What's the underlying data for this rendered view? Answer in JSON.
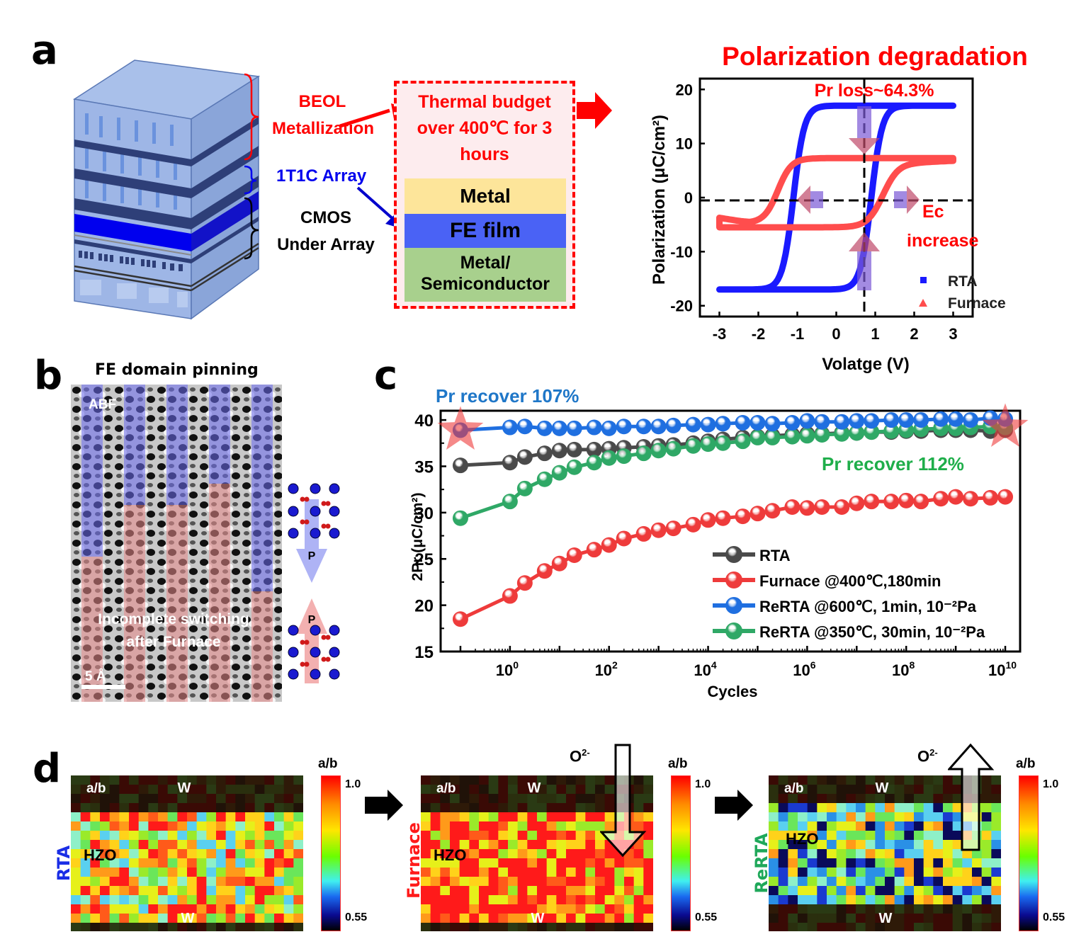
{
  "panels": {
    "a": {
      "label": "a",
      "stack_labels": {
        "beol": [
          "BEOL",
          "Metallization"
        ],
        "array": "1T1C Array",
        "cmos": [
          "CMOS",
          "Under Array"
        ]
      },
      "thermal_box": {
        "text": [
          "Thermal budget",
          "over 400℃ for 3",
          "hours"
        ],
        "layers": [
          "Metal",
          "FE film",
          "Metal/",
          "Semiconductor"
        ]
      },
      "colors": {
        "accent_red": "#ff0000",
        "array_blue": "#0000ee",
        "metal_yellow": "#fde59a",
        "fe_blue": "#4a62f5",
        "semi_green": "#a8d08d"
      }
    },
    "b": {
      "label": "b",
      "title": "FE domain pinning",
      "image_label": "ABF",
      "overlay_text": [
        "Incomplete switching",
        "after  Furnace"
      ],
      "scale_bar": "5 Å",
      "polarization_label": "P"
    },
    "c": {
      "label": "c"
    },
    "d": {
      "label": "d",
      "maps": [
        {
          "side_label": "RTA",
          "side_color": "#1a2ee6",
          "top_label": "a/b",
          "top_metal": "W",
          "bottom_metal": "W",
          "film": "HZO",
          "arrow": null
        },
        {
          "side_label": "Furnace",
          "side_color": "#ff1a1a",
          "top_label": "a/b",
          "top_metal": "W",
          "bottom_metal": "W",
          "film": "HZO",
          "arrow": "down",
          "ion": "O",
          "ion_charge": "2-"
        },
        {
          "side_label": "ReRTA",
          "side_color": "#1fa85a",
          "top_label": "a/b",
          "top_metal": "W",
          "bottom_metal": "W",
          "film": "HZO",
          "arrow": "up",
          "ion": "O",
          "ion_charge": "2-"
        }
      ],
      "colorbar": {
        "title": "a/b",
        "max_label": "1.0",
        "min_label": "0.55"
      }
    }
  },
  "chart_data": [
    {
      "id": "pe-loop",
      "type": "line",
      "title": "Polarization degradation",
      "xlabel": "Volatge (V)",
      "ylabel": "Polarization (μC/cm²)",
      "xlim": [
        -3.5,
        3.5
      ],
      "ylim": [
        -22,
        22
      ],
      "xticks": [
        "-3",
        "-2",
        "-1",
        "0",
        "1",
        "2",
        "3"
      ],
      "yticks": [
        "20",
        "10",
        "0",
        "-10",
        "-20"
      ],
      "legend": [
        {
          "name": "RTA",
          "marker": "square",
          "color": "#1a1aff"
        },
        {
          "name": "Furnace",
          "marker": "triangle",
          "color": "#ff4d4d"
        }
      ],
      "legend_position": "bottom-right",
      "annotations": [
        "Pr loss~64.3%",
        "Ec",
        "increase"
      ],
      "series": [
        {
          "name": "RTA",
          "Ps": 17,
          "Pr": 16.5,
          "Ec_neg": -1.1,
          "Ec_pos": 0.9
        },
        {
          "name": "Furnace",
          "Ps_pos": 7,
          "Ps_neg": -5,
          "Pr_pos": 6.5,
          "Pr_neg": -5.5,
          "Ec_neg": -1.5,
          "Ec_pos": 1.2
        }
      ]
    },
    {
      "id": "endurance",
      "type": "line",
      "xlabel": "Cycles",
      "ylabel": "2Pr (μC/cm²)",
      "xscale": "log",
      "xlim_log10": [
        -1.4,
        10.3
      ],
      "ylim": [
        15,
        41
      ],
      "xticks": [
        {
          "exp": "0"
        },
        {
          "exp": "2"
        },
        {
          "exp": "4"
        },
        {
          "exp": "6"
        },
        {
          "exp": "8"
        },
        {
          "exp": "10"
        }
      ],
      "xtick_base": "10",
      "yticks": [
        "40",
        "35",
        "30",
        "25",
        "20",
        "15"
      ],
      "legend_position": "bottom-right",
      "annotations": [
        "Pr recover 107%",
        "Pr recover 112%"
      ],
      "x_log10": [
        -1,
        0,
        0.3,
        0.7,
        1,
        1.3,
        1.7,
        2,
        2.3,
        2.7,
        3,
        3.3,
        3.7,
        4,
        4.3,
        4.7,
        5,
        5.3,
        5.7,
        6,
        6.3,
        6.7,
        7,
        7.3,
        7.7,
        8,
        8.3,
        8.7,
        9,
        9.3,
        9.7,
        10
      ],
      "series": [
        {
          "name": "RTA",
          "label": "RTA",
          "color": "#4a4a4a",
          "values": [
            35.1,
            35.4,
            36.0,
            36.4,
            36.7,
            36.8,
            36.8,
            36.9,
            37.0,
            37.1,
            37.2,
            37.3,
            37.5,
            37.7,
            37.9,
            38.1,
            38.2,
            38.3,
            38.4,
            38.5,
            38.5,
            38.6,
            38.6,
            38.7,
            38.7,
            38.8,
            38.8,
            38.9,
            38.9,
            38.9,
            38.8,
            38.9
          ]
        },
        {
          "name": "Furnace",
          "label": "Furnace @400℃,180min",
          "color": "#ee3b3b",
          "values": [
            18.5,
            21.0,
            22.4,
            23.7,
            24.5,
            25.4,
            26.0,
            26.5,
            27.2,
            27.7,
            28.1,
            28.3,
            28.7,
            29.2,
            29.4,
            29.6,
            29.9,
            30.2,
            30.6,
            30.5,
            30.6,
            30.6,
            31.0,
            31.2,
            31.2,
            31.3,
            31.2,
            31.5,
            31.7,
            31.5,
            31.6,
            31.7
          ]
        },
        {
          "name": "ReRTA-600",
          "label": "ReRTA @600℃, 1min, 10⁻²Pa",
          "color": "#1f6fe0",
          "values": [
            38.9,
            39.2,
            39.3,
            39.1,
            39.1,
            39.1,
            39.2,
            39.1,
            39.3,
            39.3,
            39.3,
            39.4,
            39.5,
            39.5,
            39.6,
            39.7,
            39.7,
            39.6,
            39.7,
            39.9,
            39.8,
            39.8,
            39.9,
            39.9,
            40.0,
            40.0,
            40.0,
            40.1,
            40.1,
            40.0,
            40.2,
            40.1
          ]
        },
        {
          "name": "ReRTA-350",
          "label": "ReRTA @350℃, 30min, 10⁻²Pa",
          "color": "#2fa866",
          "values": [
            29.4,
            31.2,
            32.6,
            33.6,
            34.3,
            34.9,
            35.4,
            35.9,
            36.1,
            36.4,
            36.7,
            36.9,
            37.2,
            37.4,
            37.5,
            37.7,
            38.1,
            38.1,
            38.2,
            38.3,
            38.4,
            38.5,
            38.6,
            38.7,
            38.8,
            38.9,
            39.0,
            39.1,
            39.1,
            39.2,
            39.3,
            39.2
          ]
        }
      ],
      "stars": [
        {
          "x_log10": -1,
          "y": 38.9
        },
        {
          "x_log10": 10,
          "y": 39.2
        }
      ]
    },
    {
      "id": "ab-maps",
      "type": "heatmap",
      "colorbar_range": [
        0.55,
        1.0
      ],
      "panels": [
        "RTA",
        "Furnace",
        "ReRTA"
      ]
    }
  ]
}
